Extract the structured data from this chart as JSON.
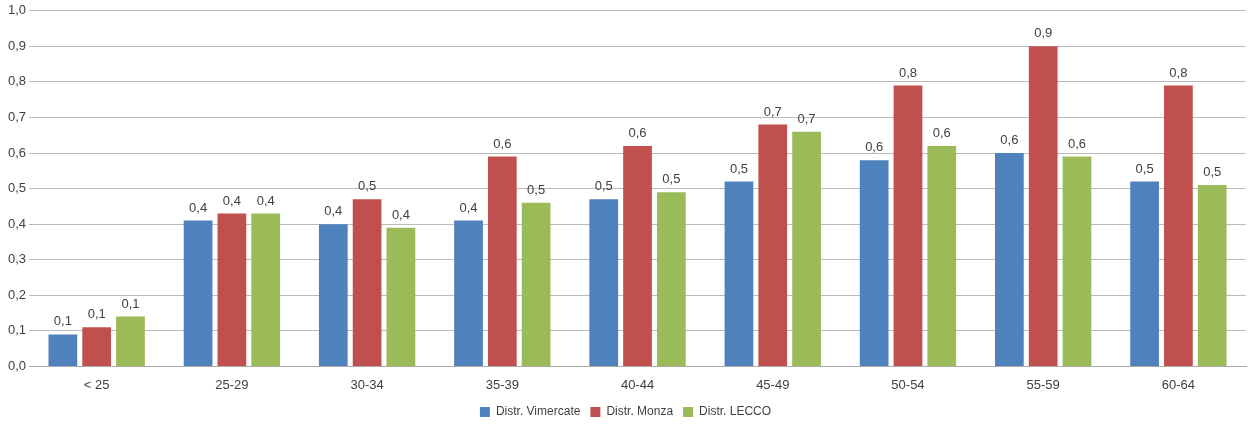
{
  "chart_data": {
    "type": "bar",
    "categories": [
      "< 25",
      "25-29",
      "30-34",
      "35-39",
      "40-44",
      "45-49",
      "50-54",
      "55-59",
      "60-64"
    ],
    "series": [
      {
        "name": "Distr. Vimercate",
        "color": "#4f81bd",
        "values": [
          0.09,
          0.41,
          0.4,
          0.41,
          0.47,
          0.52,
          0.58,
          0.6,
          0.52
        ],
        "value_labels": [
          "0,1",
          "0,4",
          "0,4",
          "0,4",
          "0,5",
          "0,5",
          "0,6",
          "0,6",
          "0,5"
        ]
      },
      {
        "name": "Distr. Monza",
        "color": "#c0504d",
        "values": [
          0.11,
          0.43,
          0.47,
          0.59,
          0.62,
          0.68,
          0.79,
          0.9,
          0.79
        ],
        "value_labels": [
          "0,1",
          "0,4",
          "0,5",
          "0,6",
          "0,6",
          "0,7",
          "0,8",
          "0,9",
          "0,8"
        ]
      },
      {
        "name": "Distr. LECCO",
        "color": "#9bbb59",
        "values": [
          0.14,
          0.43,
          0.39,
          0.46,
          0.49,
          0.66,
          0.62,
          0.59,
          0.51
        ],
        "value_labels": [
          "0,1",
          "0,4",
          "0,4",
          "0,5",
          "0,5",
          "0,7",
          "0,6",
          "0,6",
          "0,5"
        ]
      }
    ],
    "ylim": [
      0,
      1
    ],
    "yticks": [
      {
        "value": 0,
        "label": "0,0"
      },
      {
        "value": 0.1,
        "label": "0,1"
      },
      {
        "value": 0.2,
        "label": "0,2"
      },
      {
        "value": 0.3,
        "label": "0,3"
      },
      {
        "value": 0.4,
        "label": "0,4"
      },
      {
        "value": 0.5,
        "label": "0,5"
      },
      {
        "value": 0.6,
        "label": "0,6"
      },
      {
        "value": 0.7,
        "label": "0,7"
      },
      {
        "value": 0.8,
        "label": "0,8"
      },
      {
        "value": 0.9,
        "label": "0,9"
      },
      {
        "value": 1,
        "label": "1,0"
      }
    ],
    "grid": "y",
    "legend": "bottom"
  }
}
